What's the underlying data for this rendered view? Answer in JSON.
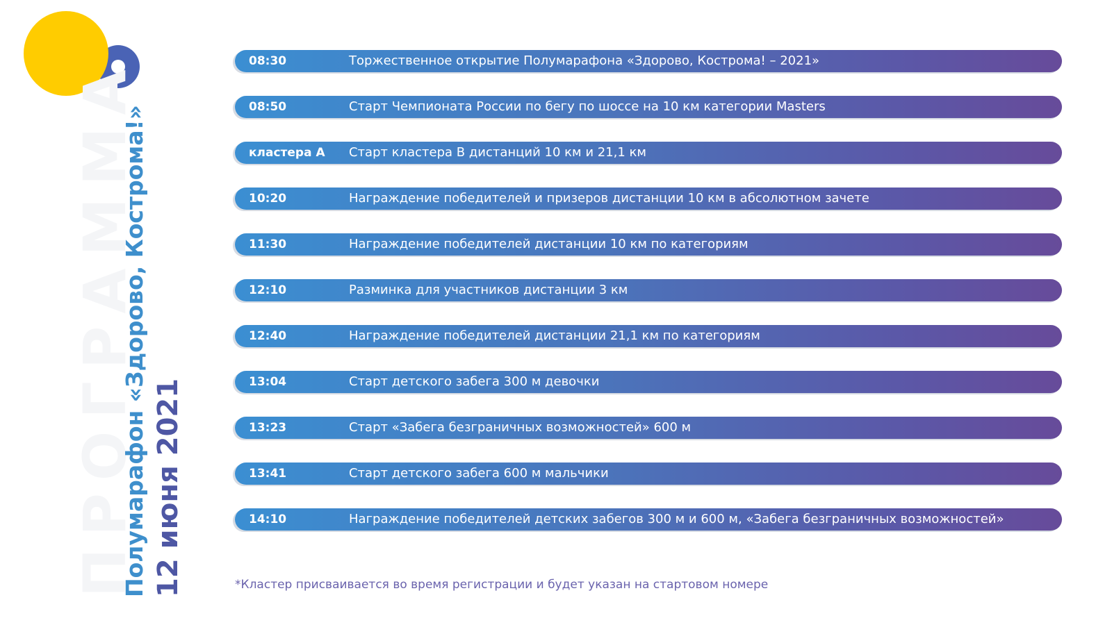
{
  "sidebar": {
    "watermark": "ПРОГРАММА",
    "title_line1": "Полумарафон «Здорово, Кострома!»",
    "title_line2": "12 июня 2021"
  },
  "colors": {
    "logo_yellow": "#ffcc00",
    "logo_blue": "#4a63b5",
    "bar_start": "#3b8fd2",
    "bar_end": "#674b9a",
    "title_blue": "#3e8fcc",
    "date_purple": "#4e57a4",
    "footnote": "#6a63ad"
  },
  "schedule": [
    {
      "time": "08:30",
      "event": "Торжественное открытие Полумарафона «Здорово, Кострома! – 2021»"
    },
    {
      "time": "08:50",
      "event": "Старт Чемпионата России по бегу по шоссе на 10 км категории Masters"
    },
    {
      "time": "кластера А",
      "event": "Старт кластера В дистанций 10 км и 21,1 км"
    },
    {
      "time": "10:20",
      "event": "Награждение победителей и призеров дистанции 10 км в абсолютном зачете"
    },
    {
      "time": "11:30",
      "event": "Награждение победителей дистанции 10 км по категориям"
    },
    {
      "time": "12:10",
      "event": "Разминка для участников дистанции 3 км"
    },
    {
      "time": "12:40",
      "event": "Награждение победителей дистанции 21,1 км по категориям"
    },
    {
      "time": "13:04",
      "event": "Старт детского забега 300 м девочки"
    },
    {
      "time": "13:23",
      "event": "Старт «Забега безграничных возможностей» 600 м"
    },
    {
      "time": "13:41",
      "event": "Старт детского забега 600 м мальчики"
    },
    {
      "time": "14:10",
      "event": "Награждение победителей детских забегов 300 м и 600 м, «Забега безграничных возможностей»"
    }
  ],
  "footnote": "*Кластер присваивается во время регистрации и будет указан на стартовом номере"
}
